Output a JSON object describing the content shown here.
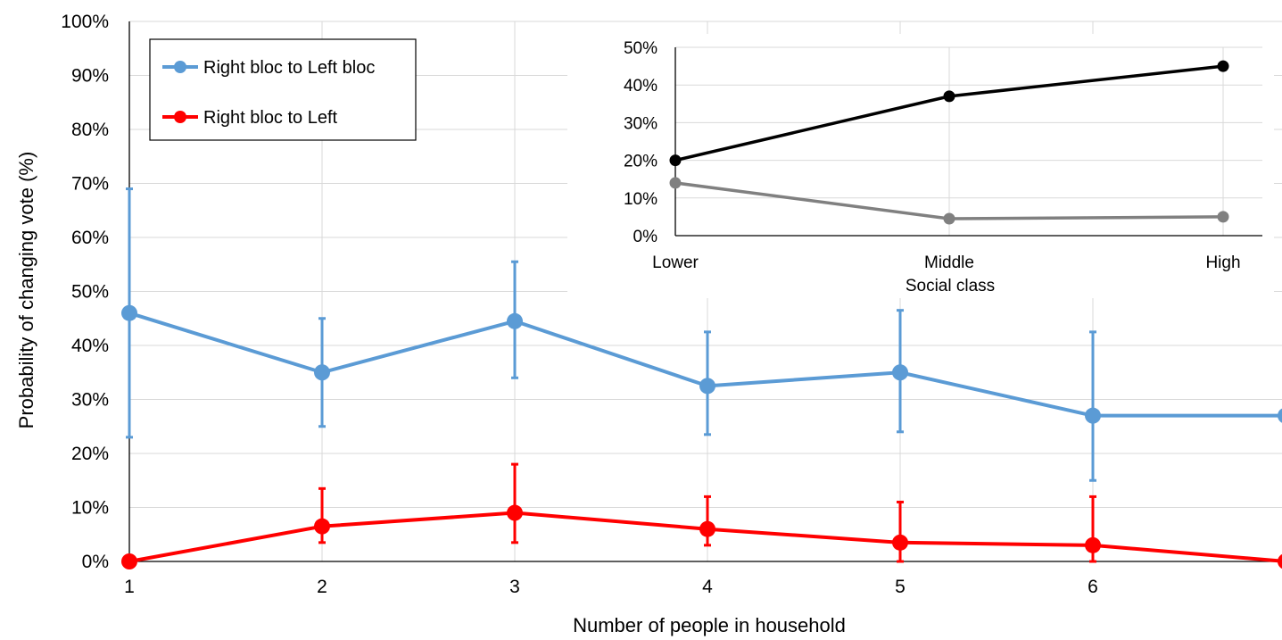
{
  "chart_data": [
    {
      "type": "line",
      "xlabel": "Number of people in household",
      "ylabel": "Probability of changing vote (%)",
      "x": [
        1,
        2,
        3,
        4,
        5,
        6,
        7
      ],
      "x_tick_labels": [
        "1",
        "2",
        "3",
        "4",
        "5",
        "6"
      ],
      "ylim": [
        0,
        100
      ],
      "y_tick_labels": [
        "0%",
        "10%",
        "20%",
        "30%",
        "40%",
        "50%",
        "60%",
        "70%",
        "80%",
        "90%",
        "100%"
      ],
      "grid": true,
      "legend_position": "top-left",
      "series": [
        {
          "name": "Right bloc to Left bloc",
          "color": "#5b9bd5",
          "values": [
            46,
            35,
            44.5,
            32.5,
            35,
            27,
            27
          ],
          "error_low": [
            23,
            25,
            34,
            23.5,
            24,
            15,
            null
          ],
          "error_high": [
            69,
            45,
            55.5,
            42.5,
            46.5,
            42.5,
            null
          ]
        },
        {
          "name": "Right bloc to Left",
          "color": "#ff0000",
          "values": [
            0,
            6.5,
            9,
            6,
            3.5,
            3,
            0
          ],
          "error_low": [
            0,
            3.5,
            3.5,
            3,
            0,
            0,
            null
          ],
          "error_high": [
            0,
            13.5,
            18,
            12,
            11,
            12,
            null
          ]
        }
      ]
    },
    {
      "type": "line",
      "xlabel": "Social class",
      "categories": [
        "Lower",
        "Middle",
        "High"
      ],
      "ylim": [
        0,
        50
      ],
      "y_tick_labels": [
        "0%",
        "10%",
        "20%",
        "30%",
        "40%",
        "50%"
      ],
      "grid": true,
      "series": [
        {
          "color": "#000000",
          "values": [
            20,
            37,
            45
          ]
        },
        {
          "color": "#808080",
          "values": [
            14,
            4.5,
            5
          ]
        }
      ]
    }
  ]
}
